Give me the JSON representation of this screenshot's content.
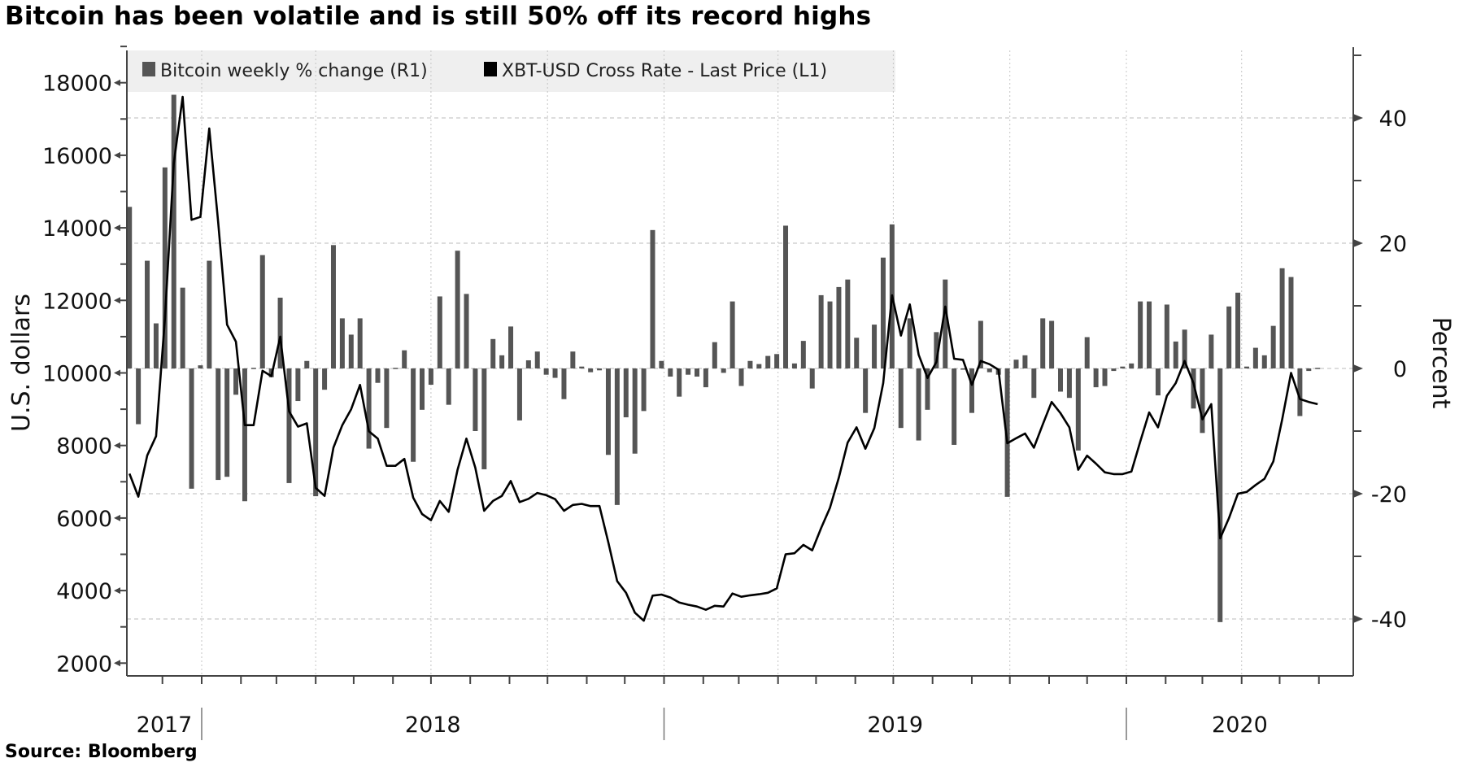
{
  "title": "Bitcoin has been volatile and is still 50% off its record highs",
  "source": "Source: Bloomberg",
  "chart_data": {
    "type": "bar+line",
    "title": "Bitcoin has been volatile and is still 50% off its record highs",
    "x_start": "2017-11-05",
    "x_step_days": 7,
    "x_range": [
      "2017-11-01",
      "2020-06-28"
    ],
    "x_tick_labels": [
      {
        "label": "2017",
        "from": "2017-11-01",
        "to": "2018-01-01"
      },
      {
        "label": "2018",
        "from": "2018-01-01",
        "to": "2019-01-01"
      },
      {
        "label": "2019",
        "from": "2019-01-01",
        "to": "2020-01-01"
      },
      {
        "label": "2020",
        "from": "2020-01-01",
        "to": "2020-06-28"
      }
    ],
    "left_axis": {
      "label": "U.S. dollars",
      "ylim": [
        1500,
        19000
      ],
      "ticks": [
        2000,
        4000,
        6000,
        8000,
        10000,
        12000,
        14000,
        16000,
        18000
      ]
    },
    "right_axis": {
      "label": "Percent",
      "ylim": [
        -50,
        52
      ],
      "ticks": [
        -40,
        -20,
        0,
        20,
        40
      ]
    },
    "grid": true,
    "legend": {
      "placement": "top-left",
      "entries": [
        {
          "name": "Bitcoin weekly % change (R1)",
          "color": "#555555"
        },
        {
          "name": "XBT-USD Cross Rate - Last Price (L1)",
          "color": "#000000"
        }
      ]
    },
    "series": [
      {
        "name": "Bitcoin weekly % change (R1)",
        "type": "bar",
        "axis": "right",
        "color": "#555555",
        "values": [
          25.8,
          -8.9,
          17.2,
          7.2,
          32.1,
          43.7,
          12.9,
          -19.2,
          0.5,
          17.2,
          -17.8,
          -17.3,
          -4.2,
          -21.2,
          0.1,
          18.1,
          -1.4,
          11.3,
          -18.3,
          -5.2,
          1.2,
          -20.4,
          -3.4,
          19.7,
          8.0,
          5.4,
          8.0,
          -12.8,
          -2.3,
          -9.5,
          0.1,
          2.9,
          -14.9,
          -6.6,
          -2.6,
          11.5,
          -5.8,
          18.8,
          11.9,
          -10.0,
          -16.1,
          4.7,
          2.1,
          6.7,
          -8.3,
          1.3,
          2.7,
          -1.0,
          -1.5,
          -4.9,
          2.7,
          0.3,
          -0.6,
          -0.3,
          -13.8,
          -21.8,
          -7.8,
          -13.6,
          -6.8,
          22.1,
          1.2,
          -1.3,
          -4.5,
          -1.0,
          -1.3,
          -3.0,
          4.2,
          -0.7,
          10.7,
          -2.8,
          1.2,
          0.7,
          2.0,
          2.3,
          22.8,
          0.8,
          4.4,
          -3.2,
          11.7,
          10.7,
          13.0,
          14.2,
          4.9,
          -7.1,
          7.0,
          17.7,
          23.0,
          -9.5,
          8.0,
          -11.5,
          -6.6,
          5.8,
          14.2,
          -12.2,
          -0.2,
          -7.1,
          7.6,
          -0.6,
          -1.0,
          -20.5,
          1.4,
          2.1,
          -4.7,
          8.0,
          7.6,
          -3.7,
          -4.7,
          -13.1,
          5.0,
          -3.0,
          -2.8,
          -0.4,
          0.3,
          0.8,
          10.7,
          10.7,
          -4.3,
          10.2,
          4.3,
          6.2,
          -6.4,
          -10.3,
          5.4,
          -40.5,
          9.9,
          12.1,
          0.3,
          3.3,
          2.1,
          6.8,
          16.0,
          14.6,
          -7.6,
          -0.4,
          0.1
        ]
      },
      {
        "name": "XBT-USD Cross Rate - Last Price (L1)",
        "type": "line",
        "axis": "left",
        "color": "#000000",
        "values": [
          7222,
          6589,
          7722,
          8256,
          11500,
          15780,
          17610,
          14220,
          14300,
          16740,
          14170,
          11330,
          10860,
          8560,
          8560,
          10060,
          9910,
          11000,
          8940,
          8520,
          8610,
          6830,
          6610,
          7940,
          8560,
          9000,
          9670,
          8390,
          8190,
          7440,
          7440,
          7630,
          6560,
          6110,
          5940,
          6470,
          6170,
          7330,
          8190,
          7390,
          6200,
          6470,
          6610,
          7020,
          6440,
          6530,
          6690,
          6630,
          6520,
          6200,
          6360,
          6390,
          6330,
          6330,
          5330,
          4260,
          3940,
          3390,
          3170,
          3860,
          3890,
          3810,
          3670,
          3610,
          3560,
          3470,
          3580,
          3560,
          3920,
          3830,
          3870,
          3900,
          3940,
          4060,
          5000,
          5030,
          5260,
          5110,
          5720,
          6280,
          7110,
          8080,
          8500,
          7910,
          8480,
          9720,
          12140,
          11030,
          11890,
          10500,
          9860,
          10300,
          11830,
          10390,
          10360,
          9670,
          10330,
          10240,
          10090,
          8060,
          8200,
          8330,
          7940,
          8580,
          9200,
          8890,
          8500,
          7330,
          7720,
          7500,
          7260,
          7210,
          7210,
          7280,
          8110,
          8910,
          8500,
          9370,
          9720,
          10330,
          9720,
          8720,
          9140,
          5440,
          6000,
          6670,
          6720,
          6910,
          7080,
          7560,
          8720,
          10000,
          9280,
          9200,
          9140
        ]
      }
    ]
  }
}
